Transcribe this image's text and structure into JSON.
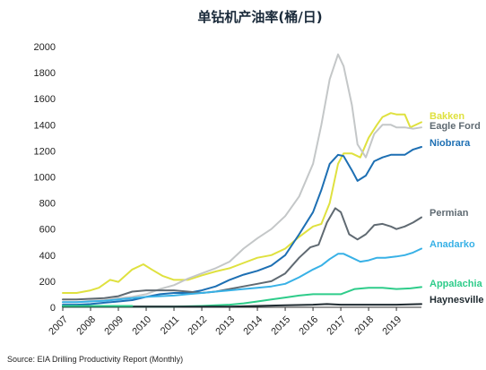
{
  "chart_data": {
    "type": "line",
    "title": "单钻机产油率(桶/日)",
    "source": "Source: EIA Drilling Productivity Report (Monthly)",
    "xlabel": "",
    "ylabel": "",
    "xlim": [
      2007.0,
      2019.9
    ],
    "ylim": [
      0,
      2000
    ],
    "x_ticks": [
      2007,
      2008,
      2009,
      2010,
      2011,
      2012,
      2013,
      2014,
      2015,
      2016,
      2017,
      2018,
      2019
    ],
    "y_ticks": [
      0,
      200,
      400,
      600,
      800,
      1000,
      1200,
      1400,
      1600,
      1800,
      2000
    ],
    "grid": false,
    "series": [
      {
        "name": "Bakken",
        "color": "#dfe13f",
        "x": [
          2007.0,
          2007.5,
          2008.0,
          2008.3,
          2008.7,
          2009.0,
          2009.5,
          2009.9,
          2010.2,
          2010.6,
          2011.0,
          2011.5,
          2012.0,
          2012.5,
          2013.0,
          2013.5,
          2014.0,
          2014.5,
          2015.0,
          2015.5,
          2016.0,
          2016.3,
          2016.6,
          2016.9,
          2017.1,
          2017.4,
          2017.7,
          2018.0,
          2018.3,
          2018.5,
          2018.8,
          2019.0,
          2019.3,
          2019.5,
          2019.9
        ],
        "y": [
          110,
          110,
          130,
          150,
          210,
          195,
          290,
          330,
          290,
          240,
          210,
          210,
          245,
          275,
          300,
          340,
          380,
          400,
          450,
          540,
          620,
          640,
          800,
          1100,
          1180,
          1180,
          1150,
          1300,
          1400,
          1460,
          1490,
          1480,
          1480,
          1380,
          1420
        ]
      },
      {
        "name": "Eagle Ford",
        "color": "#c4c7c8",
        "x": [
          2007.0,
          2007.5,
          2008.0,
          2008.5,
          2009.0,
          2009.5,
          2010.0,
          2010.5,
          2011.0,
          2011.5,
          2012.0,
          2012.5,
          2013.0,
          2013.5,
          2014.0,
          2014.5,
          2015.0,
          2015.5,
          2016.0,
          2016.3,
          2016.6,
          2016.9,
          2017.1,
          2017.4,
          2017.6,
          2017.9,
          2018.2,
          2018.5,
          2018.8,
          2019.0,
          2019.3,
          2019.6,
          2019.9
        ],
        "y": [
          40,
          40,
          50,
          55,
          70,
          80,
          100,
          140,
          170,
          220,
          260,
          300,
          350,
          450,
          530,
          600,
          700,
          850,
          1100,
          1400,
          1750,
          1940,
          1850,
          1550,
          1250,
          1150,
          1330,
          1400,
          1400,
          1380,
          1380,
          1370,
          1380
        ]
      },
      {
        "name": "Niobrara",
        "color": "#1d6fb3",
        "x": [
          2007.0,
          2007.5,
          2008.0,
          2008.5,
          2009.0,
          2009.5,
          2010.0,
          2010.5,
          2011.0,
          2011.5,
          2012.0,
          2012.5,
          2013.0,
          2013.5,
          2014.0,
          2014.5,
          2015.0,
          2015.5,
          2016.0,
          2016.3,
          2016.6,
          2016.9,
          2017.1,
          2017.4,
          2017.6,
          2017.9,
          2018.2,
          2018.5,
          2018.8,
          2019.0,
          2019.3,
          2019.6,
          2019.9
        ],
        "y": [
          20,
          20,
          25,
          35,
          45,
          55,
          80,
          100,
          110,
          110,
          130,
          160,
          210,
          250,
          280,
          320,
          400,
          560,
          730,
          900,
          1100,
          1170,
          1160,
          1050,
          970,
          1010,
          1120,
          1150,
          1170,
          1170,
          1170,
          1210,
          1230
        ]
      },
      {
        "name": "Permian",
        "color": "#606a72",
        "x": [
          2007.0,
          2007.5,
          2008.0,
          2008.5,
          2009.0,
          2009.5,
          2010.0,
          2010.5,
          2011.0,
          2011.5,
          2012.0,
          2012.5,
          2013.0,
          2013.5,
          2014.0,
          2014.5,
          2015.0,
          2015.5,
          2015.9,
          2016.2,
          2016.5,
          2016.8,
          2017.0,
          2017.3,
          2017.6,
          2017.9,
          2018.2,
          2018.5,
          2018.8,
          2019.0,
          2019.3,
          2019.6,
          2019.9
        ],
        "y": [
          60,
          60,
          65,
          70,
          85,
          120,
          130,
          130,
          130,
          120,
          110,
          120,
          140,
          160,
          180,
          200,
          260,
          380,
          460,
          480,
          650,
          760,
          730,
          560,
          520,
          560,
          630,
          640,
          620,
          600,
          620,
          650,
          690
        ]
      },
      {
        "name": "Anadarko",
        "color": "#38b1e6",
        "x": [
          2007.0,
          2007.5,
          2008.0,
          2008.5,
          2009.0,
          2009.5,
          2010.0,
          2010.5,
          2011.0,
          2011.5,
          2012.0,
          2012.5,
          2013.0,
          2013.5,
          2014.0,
          2014.5,
          2015.0,
          2015.5,
          2016.0,
          2016.3,
          2016.6,
          2016.9,
          2017.1,
          2017.4,
          2017.7,
          2018.0,
          2018.3,
          2018.6,
          2019.0,
          2019.3,
          2019.6,
          2019.9
        ],
        "y": [
          40,
          40,
          45,
          50,
          60,
          70,
          80,
          85,
          90,
          100,
          110,
          120,
          130,
          140,
          150,
          160,
          180,
          230,
          290,
          320,
          370,
          410,
          410,
          380,
          350,
          360,
          380,
          380,
          390,
          400,
          420,
          450
        ]
      },
      {
        "name": "Appalachia",
        "color": "#2ecc8a",
        "x": [
          2007.0,
          2008.0,
          2009.0,
          2010.0,
          2011.0,
          2012.0,
          2012.5,
          2013.0,
          2013.5,
          2014.0,
          2014.5,
          2015.0,
          2015.5,
          2016.0,
          2016.5,
          2017.0,
          2017.5,
          2018.0,
          2018.5,
          2019.0,
          2019.5,
          2019.9
        ],
        "y": [
          5,
          5,
          5,
          5,
          5,
          10,
          15,
          20,
          30,
          45,
          60,
          75,
          90,
          100,
          100,
          100,
          140,
          150,
          150,
          140,
          145,
          155
        ]
      },
      {
        "name": "Haynesville",
        "color": "#1f2a30",
        "x": [
          2007.0,
          2008.0,
          2009.0,
          2010.0,
          2011.0,
          2012.0,
          2013.0,
          2014.0,
          2015.0,
          2016.0,
          2016.5,
          2017.0,
          2018.0,
          2019.0,
          2019.9
        ],
        "y": [
          5,
          5,
          5,
          5,
          5,
          5,
          5,
          10,
          15,
          20,
          25,
          20,
          20,
          20,
          25
        ]
      },
      {
        "name": "",
        "color": "#2ecc8a",
        "x": [
          2007.0,
          2008.0,
          2009.0,
          2009.5
        ],
        "y": [
          10,
          10,
          10,
          10
        ]
      }
    ],
    "labels": [
      "Bakken",
      "Eagle Ford",
      "Niobrara",
      "Permian",
      "Anadarko",
      "Appalachia",
      "Haynesville"
    ]
  }
}
